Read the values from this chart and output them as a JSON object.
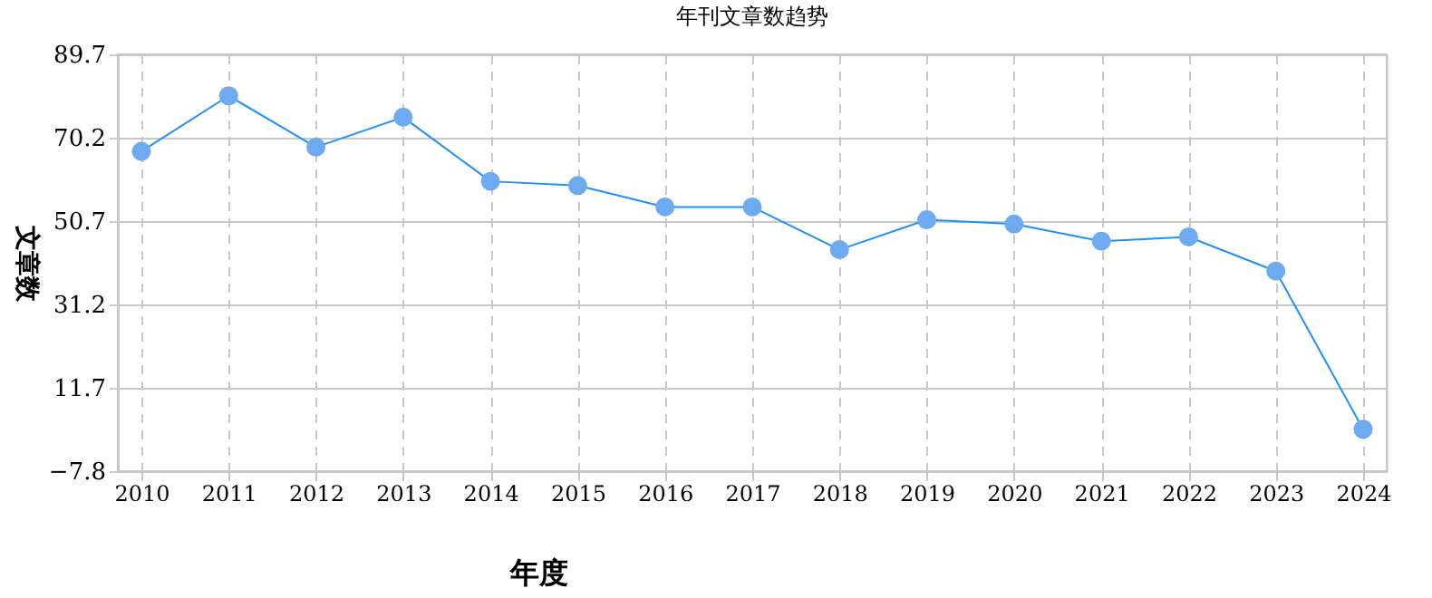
{
  "chart_data": {
    "type": "line",
    "title": "年刊文章数趋势",
    "xlabel": "年度",
    "ylabel": "文章数",
    "categories": [
      "2010",
      "2011",
      "2012",
      "2013",
      "2014",
      "2015",
      "2016",
      "2017",
      "2018",
      "2019",
      "2020",
      "2021",
      "2022",
      "2023",
      "2024"
    ],
    "series": [
      {
        "color": "#1e90ff",
        "values": [
          67,
          80,
          68,
          75,
          60,
          59,
          54,
          54,
          44,
          51,
          50,
          46,
          47,
          39,
          2
        ]
      }
    ],
    "ylim": [
      -7.8,
      89.7
    ],
    "yticks": [
      -7.8,
      11.7,
      31.2,
      50.7,
      70.2,
      89.7
    ],
    "grid": true,
    "marker": "circle",
    "line_style": "solid"
  }
}
